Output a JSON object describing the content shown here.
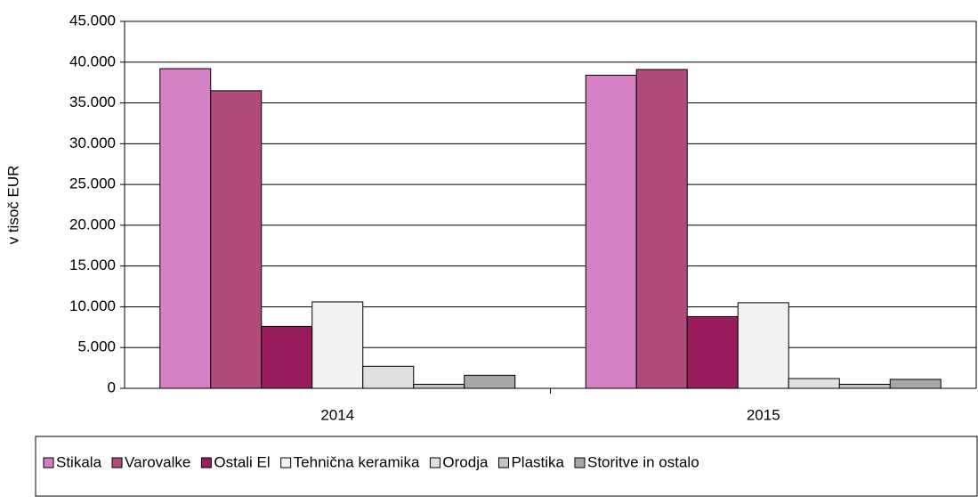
{
  "chart_data": {
    "type": "bar",
    "y_label": "v tisoč EUR",
    "categories": [
      "2014",
      "2015"
    ],
    "series": [
      {
        "name": "Stikala",
        "color": "#d580c4",
        "values": [
          39200,
          38400
        ]
      },
      {
        "name": "Varovalke",
        "color": "#b04c7c",
        "values": [
          36500,
          39100
        ]
      },
      {
        "name": "Ostali El",
        "color": "#9b1c5c",
        "values": [
          7600,
          8800
        ]
      },
      {
        "name": "Tehnična keramika",
        "color": "#f2f2f2",
        "values": [
          10600,
          10500
        ]
      },
      {
        "name": "Orodja",
        "color": "#e0e0e0",
        "values": [
          2700,
          1200
        ]
      },
      {
        "name": "Plastika",
        "color": "#c4c4c4",
        "values": [
          500,
          500
        ]
      },
      {
        "name": "Storitve in ostalo",
        "color": "#a8a8a8",
        "values": [
          1600,
          1100
        ]
      }
    ],
    "ylim": [
      0,
      45000
    ],
    "yticks": [
      0,
      {
        "value": 5000,
        "label": "5.000"
      },
      {
        "value": 10000,
        "label": "10.000"
      },
      {
        "value": 15000,
        "label": "15.000"
      },
      {
        "value": 20000,
        "label": "20.000"
      },
      {
        "value": 25000,
        "label": "25.000"
      },
      {
        "value": 30000,
        "label": "30.000"
      },
      {
        "value": 35000,
        "label": "35.000"
      },
      {
        "value": 40000,
        "label": "40.000"
      },
      {
        "value": 45000,
        "label": "45.000"
      }
    ],
    "grid": true,
    "legend": "bottom"
  }
}
